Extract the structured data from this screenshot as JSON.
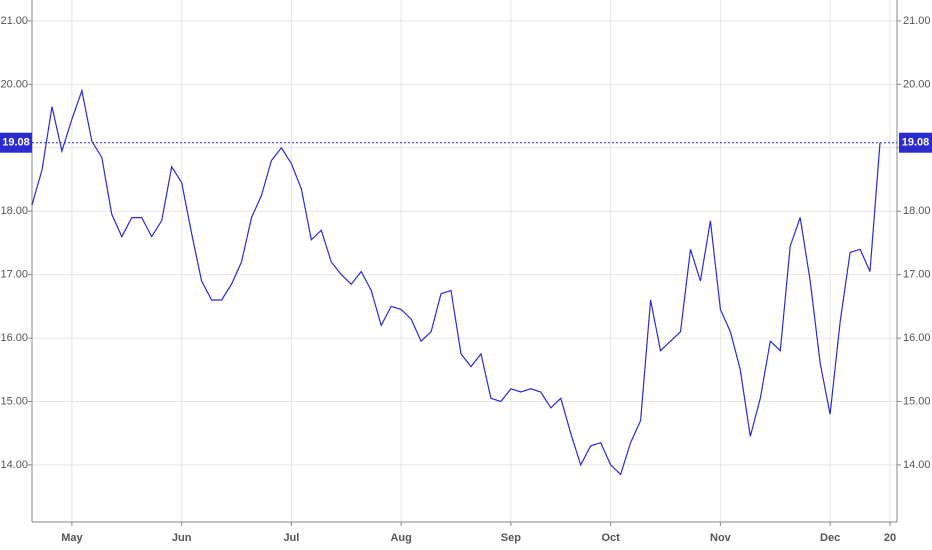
{
  "chart_data": {
    "type": "line",
    "categories": [
      null,
      null,
      null,
      null,
      "May",
      null,
      null,
      null,
      null,
      null,
      null,
      null,
      null,
      null,
      null,
      "Jun",
      null,
      null,
      null,
      null,
      null,
      null,
      null,
      null,
      null,
      null,
      "Jul",
      null,
      null,
      null,
      null,
      null,
      null,
      null,
      null,
      null,
      null,
      "Aug",
      null,
      null,
      null,
      null,
      null,
      null,
      null,
      null,
      null,
      null,
      "Sep",
      null,
      null,
      null,
      null,
      null,
      null,
      null,
      null,
      null,
      "Oct",
      null,
      null,
      null,
      null,
      null,
      null,
      null,
      null,
      null,
      null,
      "Nov",
      null,
      null,
      null,
      null,
      null,
      null,
      null,
      null,
      null,
      null,
      "Dec",
      null,
      null,
      null,
      null,
      null,
      "20"
    ],
    "series": [
      {
        "color": "#2b2bd1",
        "values": [
          18.1,
          18.65,
          19.65,
          18.95,
          19.45,
          19.9,
          19.1,
          18.85,
          17.95,
          17.6,
          17.9,
          17.9,
          17.6,
          17.85,
          18.7,
          18.45,
          17.65,
          16.9,
          16.6,
          16.6,
          16.85,
          17.2,
          17.9,
          18.25,
          18.8,
          19.0,
          18.75,
          18.35,
          17.55,
          17.7,
          17.2,
          17.0,
          16.85,
          17.05,
          16.75,
          16.2,
          16.5,
          16.45,
          16.3,
          15.95,
          16.1,
          16.7,
          16.75,
          15.75,
          15.55,
          15.75,
          15.05,
          15.0,
          15.2,
          15.15,
          15.2,
          15.15,
          14.9,
          15.05,
          14.5,
          14.0,
          14.3,
          14.35,
          14.0,
          13.85,
          14.35,
          14.7,
          16.6,
          15.8,
          15.95,
          16.1,
          17.4,
          16.9,
          17.85,
          16.45,
          16.1,
          15.5,
          14.45,
          15.05,
          15.95,
          15.8,
          17.45,
          17.9,
          16.9,
          15.6,
          14.8,
          16.25,
          17.35,
          17.4,
          17.05,
          19.08,
          null
        ]
      }
    ],
    "ylim": [
      13.1,
      21.33
    ],
    "yticks": [
      {
        "value": 14,
        "label": "14.00"
      },
      {
        "value": 15,
        "label": "15.00"
      },
      {
        "value": 16,
        "label": "16.00"
      },
      {
        "value": 17,
        "label": "17.00"
      },
      {
        "value": 18,
        "label": "18.00"
      },
      {
        "value": 19,
        "label": "19.00"
      },
      {
        "value": 20,
        "label": "20.00"
      },
      {
        "value": 21,
        "label": "21.00"
      }
    ],
    "grid": true
  }
}
